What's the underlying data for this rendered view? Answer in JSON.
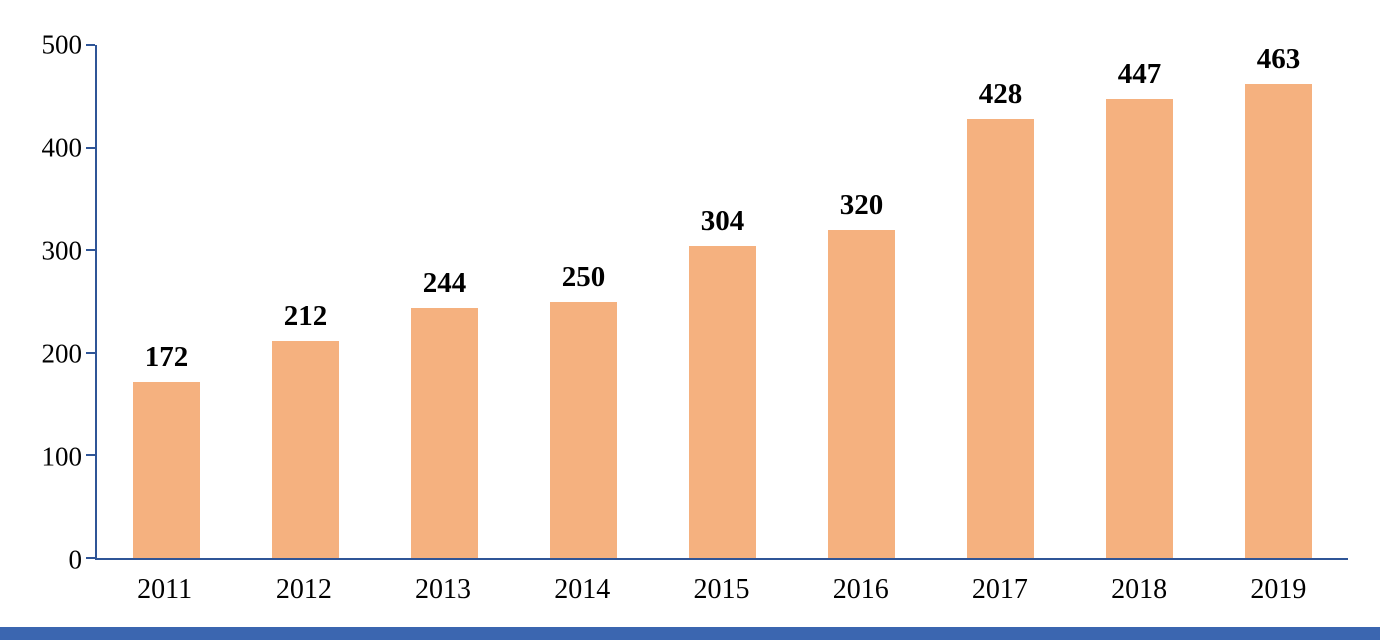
{
  "chart_data": {
    "type": "bar",
    "title": "",
    "xlabel": "",
    "ylabel": "",
    "categories": [
      "2011",
      "2012",
      "2013",
      "2014",
      "2015",
      "2016",
      "2017",
      "2018",
      "2019"
    ],
    "values": [
      172,
      212,
      244,
      250,
      304,
      320,
      428,
      447,
      463
    ],
    "data_labels": [
      "172",
      "212",
      "244",
      "250",
      "304",
      "320",
      "428",
      "447",
      "463"
    ],
    "ylim": [
      0,
      500
    ],
    "yticks": [
      0,
      100,
      200,
      300,
      400,
      500
    ],
    "ytick_labels": [
      "0",
      "100",
      "200",
      "300",
      "400",
      "500"
    ],
    "grid": false,
    "legend": false,
    "bar_color": "#F5B17F",
    "axis_color": "#2F5597",
    "value_label_color": "#000000",
    "tick_label_color": "#000000",
    "footer_strip_color": "#3B66B0"
  }
}
